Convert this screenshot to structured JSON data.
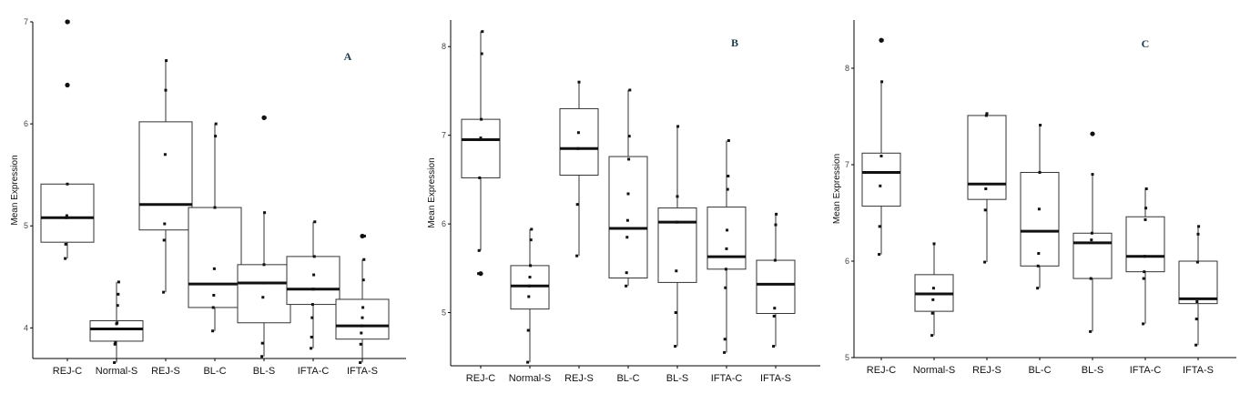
{
  "chart_data": [
    {
      "type": "box",
      "panel_label": "A",
      "ylabel": "Mean Expression",
      "ylim": [
        3.7,
        7.0
      ],
      "yticks": [
        4,
        5,
        6,
        7
      ],
      "categories": [
        "REJ-C",
        "Normal-S",
        "REJ-S",
        "BL-C",
        "BL-S",
        "IFTA-C",
        "IFTA-S"
      ],
      "boxes": [
        {
          "category": "REJ-C",
          "min": 4.68,
          "q1": 4.84,
          "median": 5.08,
          "q3": 5.41,
          "max": 5.41,
          "outliers": [
            6.38,
            7.0
          ],
          "points": [
            4.68,
            4.82,
            5.08,
            5.1,
            5.41,
            6.38,
            7.0
          ]
        },
        {
          "category": "Normal-S",
          "min": 3.66,
          "q1": 3.87,
          "median": 3.99,
          "q3": 4.07,
          "max": 4.45,
          "outliers": [],
          "points": [
            3.66,
            3.84,
            3.86,
            3.99,
            4.04,
            4.05,
            4.22,
            4.33,
            4.45
          ]
        },
        {
          "category": "REJ-S",
          "min": 4.35,
          "q1": 4.96,
          "median": 5.21,
          "q3": 6.02,
          "max": 6.62,
          "outliers": [],
          "points": [
            4.35,
            4.86,
            5.02,
            5.7,
            6.33,
            6.62
          ]
        },
        {
          "category": "BL-C",
          "min": 3.97,
          "q1": 4.2,
          "median": 4.43,
          "q3": 5.18,
          "max": 6.0,
          "outliers": [],
          "points": [
            3.97,
            4.2,
            4.32,
            4.58,
            5.18,
            5.88,
            6.0
          ]
        },
        {
          "category": "BL-S",
          "min": 3.72,
          "q1": 4.05,
          "median": 4.44,
          "q3": 4.62,
          "max": 5.13,
          "outliers": [
            6.06
          ],
          "points": [
            3.72,
            3.85,
            4.3,
            4.44,
            4.62,
            5.13,
            6.06
          ]
        },
        {
          "category": "IFTA-C",
          "min": 3.8,
          "q1": 4.23,
          "median": 4.38,
          "q3": 4.7,
          "max": 5.04,
          "outliers": [],
          "points": [
            3.8,
            3.91,
            4.1,
            4.23,
            4.38,
            4.52,
            4.7,
            5.04
          ]
        },
        {
          "category": "IFTA-S",
          "min": 3.66,
          "q1": 3.89,
          "median": 4.02,
          "q3": 4.28,
          "max": 4.67,
          "outliers": [
            4.9
          ],
          "points": [
            3.66,
            3.84,
            3.95,
            4.02,
            4.1,
            4.2,
            4.47,
            4.67,
            4.9
          ]
        }
      ]
    },
    {
      "type": "box",
      "panel_label": "B",
      "ylabel": "Mean Expression",
      "ylim": [
        4.4,
        8.3
      ],
      "yticks": [
        5,
        6,
        7,
        8
      ],
      "categories": [
        "REJ-C",
        "Normal-S",
        "REJ-S",
        "BL-C",
        "BL-S",
        "IFTA-C",
        "IFTA-S"
      ],
      "boxes": [
        {
          "category": "REJ-C",
          "min": 5.7,
          "q1": 6.52,
          "median": 6.95,
          "q3": 7.18,
          "max": 8.17,
          "outliers": [
            5.44
          ],
          "points": [
            5.44,
            5.7,
            6.52,
            6.95,
            6.97,
            7.18,
            7.92,
            8.17
          ]
        },
        {
          "category": "Normal-S",
          "min": 4.44,
          "q1": 5.04,
          "median": 5.3,
          "q3": 5.53,
          "max": 5.94,
          "outliers": [],
          "points": [
            4.44,
            4.8,
            5.18,
            5.3,
            5.4,
            5.53,
            5.82,
            5.94
          ]
        },
        {
          "category": "REJ-S",
          "min": 5.64,
          "q1": 6.55,
          "median": 6.85,
          "q3": 7.3,
          "max": 7.6,
          "outliers": [],
          "points": [
            5.64,
            6.22,
            6.85,
            7.03,
            7.6
          ]
        },
        {
          "category": "BL-C",
          "min": 5.3,
          "q1": 5.39,
          "median": 5.95,
          "q3": 6.76,
          "max": 7.51,
          "outliers": [],
          "points": [
            5.3,
            5.45,
            5.85,
            6.04,
            6.34,
            6.73,
            6.99,
            7.51
          ]
        },
        {
          "category": "BL-S",
          "min": 4.62,
          "q1": 5.34,
          "median": 6.02,
          "q3": 6.18,
          "max": 7.1,
          "outliers": [],
          "points": [
            4.62,
            5.0,
            5.47,
            6.02,
            6.31,
            7.1
          ]
        },
        {
          "category": "IFTA-C",
          "min": 4.55,
          "q1": 5.49,
          "median": 5.63,
          "q3": 6.19,
          "max": 6.94,
          "outliers": [],
          "points": [
            4.55,
            4.7,
            5.28,
            5.49,
            5.72,
            5.93,
            6.39,
            6.54,
            6.94
          ]
        },
        {
          "category": "IFTA-S",
          "min": 4.62,
          "q1": 4.99,
          "median": 5.32,
          "q3": 5.59,
          "max": 6.11,
          "outliers": [],
          "points": [
            4.62,
            4.96,
            5.05,
            5.59,
            5.99,
            6.11
          ]
        }
      ]
    },
    {
      "type": "box",
      "panel_label": "C",
      "ylabel": "Mean Expression",
      "ylim": [
        5.0,
        8.5
      ],
      "yticks": [
        5,
        6,
        7,
        8
      ],
      "categories": [
        "REJ-C",
        "Normal-S",
        "REJ-S",
        "BL-C",
        "BL-S",
        "IFTA-C",
        "IFTA-S"
      ],
      "boxes": [
        {
          "category": "REJ-C",
          "min": 6.07,
          "q1": 6.57,
          "median": 6.92,
          "q3": 7.12,
          "max": 7.86,
          "outliers": [
            8.29
          ],
          "points": [
            6.07,
            6.36,
            6.78,
            6.92,
            7.09,
            7.86,
            8.29
          ]
        },
        {
          "category": "Normal-S",
          "min": 5.23,
          "q1": 5.48,
          "median": 5.66,
          "q3": 5.86,
          "max": 6.18,
          "outliers": [],
          "points": [
            5.23,
            5.46,
            5.6,
            5.72,
            6.18
          ]
        },
        {
          "category": "REJ-S",
          "min": 5.99,
          "q1": 6.64,
          "median": 6.8,
          "q3": 7.51,
          "max": 7.53,
          "outliers": [],
          "points": [
            5.99,
            6.53,
            6.75,
            7.51,
            7.53
          ]
        },
        {
          "category": "BL-C",
          "min": 5.72,
          "q1": 5.95,
          "median": 6.31,
          "q3": 6.92,
          "max": 7.41,
          "outliers": [],
          "points": [
            5.72,
            5.95,
            6.08,
            6.54,
            6.92,
            7.41
          ]
        },
        {
          "category": "BL-S",
          "min": 5.27,
          "q1": 5.82,
          "median": 6.19,
          "q3": 6.29,
          "max": 6.9,
          "outliers": [
            7.32
          ],
          "points": [
            5.27,
            5.82,
            6.22,
            6.29,
            6.9,
            7.32
          ]
        },
        {
          "category": "IFTA-C",
          "min": 5.35,
          "q1": 5.89,
          "median": 6.05,
          "q3": 6.46,
          "max": 6.75,
          "outliers": [],
          "points": [
            5.35,
            5.82,
            5.89,
            6.05,
            6.43,
            6.55,
            6.75
          ]
        },
        {
          "category": "IFTA-S",
          "min": 5.13,
          "q1": 5.56,
          "median": 5.61,
          "q3": 6.0,
          "max": 6.36,
          "outliers": [],
          "points": [
            5.13,
            5.4,
            5.58,
            5.99,
            6.28,
            6.36
          ]
        }
      ]
    }
  ]
}
